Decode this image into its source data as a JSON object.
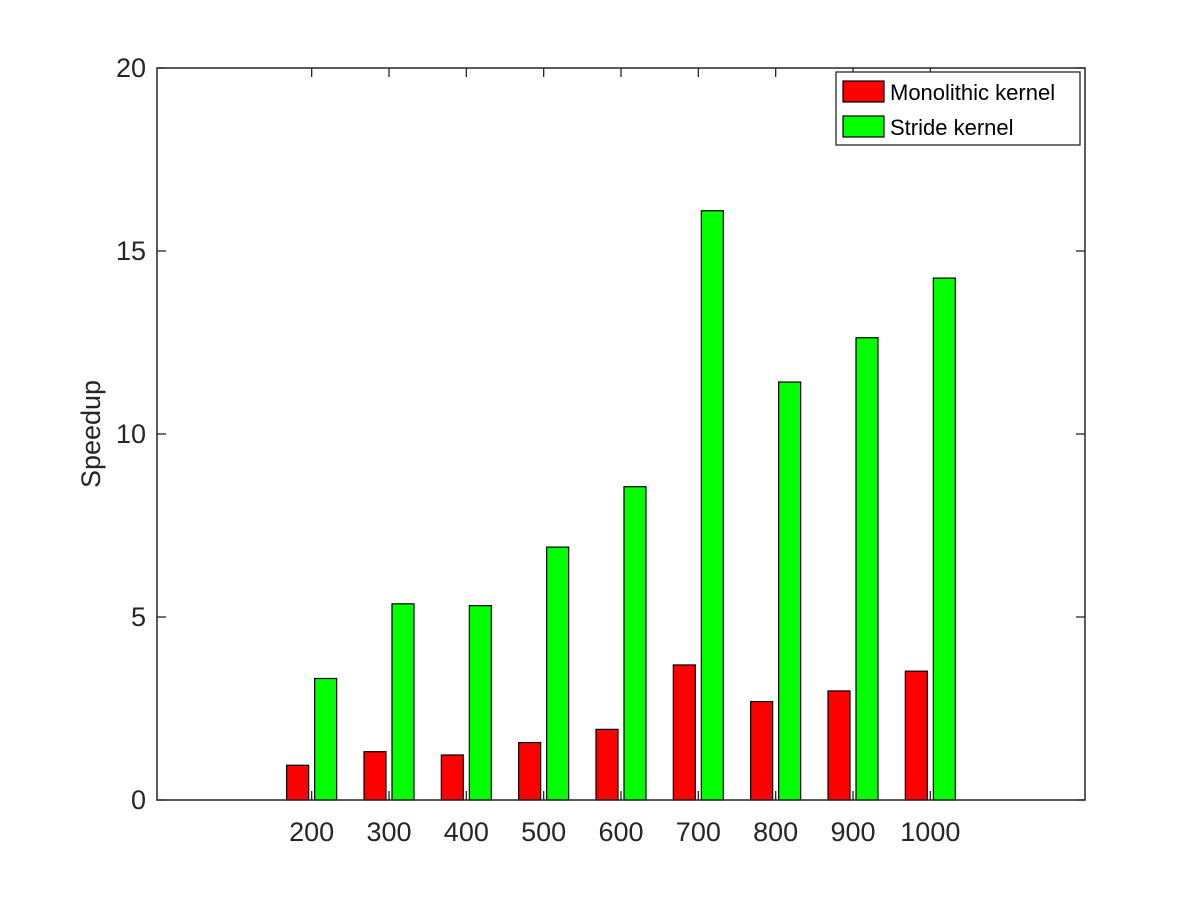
{
  "chart_data": {
    "type": "bar",
    "title": "",
    "xlabel": "",
    "ylabel": "Speedup",
    "categories": [
      "200",
      "300",
      "400",
      "500",
      "600",
      "700",
      "800",
      "900",
      "1000"
    ],
    "series": [
      {
        "name": "Monolithic kernel",
        "color": "#ff0000",
        "values": [
          0.95,
          1.32,
          1.23,
          1.57,
          1.93,
          3.69,
          2.69,
          2.98,
          3.52
        ]
      },
      {
        "name": "Stride kernel",
        "color": "#00ff00",
        "values": [
          3.32,
          5.36,
          5.31,
          6.91,
          8.56,
          16.1,
          11.42,
          12.63,
          14.26
        ]
      }
    ],
    "xlim": [
      0,
      1200
    ],
    "ylim": [
      0,
      20
    ],
    "yticks": [
      0,
      5,
      10,
      15,
      20
    ],
    "legend": "top-right",
    "grid": false
  }
}
